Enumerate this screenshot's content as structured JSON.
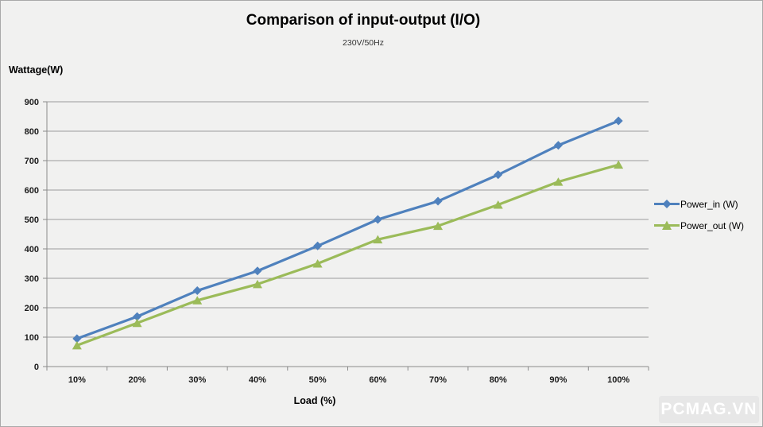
{
  "page": {
    "watermark": "PCMAG.VN"
  },
  "chart_data": {
    "type": "line",
    "title": "Comparison of input-output (I/O)",
    "subtitle": "230V/50Hz",
    "ylabel": "Wattage(W)",
    "xlabel": "Load (%)",
    "categories": [
      "10%",
      "20%",
      "30%",
      "40%",
      "50%",
      "60%",
      "70%",
      "80%",
      "90%",
      "100%"
    ],
    "series": [
      {
        "name": "Power_in (W)",
        "color": "#4F81BD",
        "marker": "diamond",
        "values": [
          95,
          170,
          258,
          325,
          410,
          500,
          562,
          652,
          752,
          835
        ]
      },
      {
        "name": "Power_out (W)",
        "color": "#9BBB59",
        "marker": "triangle",
        "values": [
          72,
          148,
          225,
          280,
          350,
          432,
          478,
          550,
          628,
          686
        ]
      }
    ],
    "ylim": [
      0,
      900
    ],
    "yticks": [
      0,
      100,
      200,
      300,
      400,
      500,
      600,
      700,
      800,
      900
    ],
    "grid": true,
    "legend_position": "right",
    "colors": {
      "gridline": "#9b9b9b",
      "axis": "#8a8a8a",
      "background": "#f1f1f0"
    }
  }
}
